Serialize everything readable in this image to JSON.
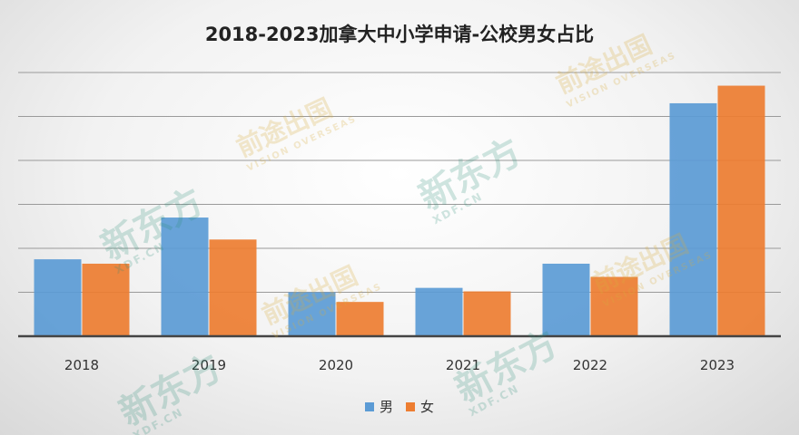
{
  "chart_data": {
    "type": "bar",
    "title": "2018-2023加拿大中小学申请-公校男女占比",
    "categories": [
      "2018",
      "2019",
      "2020",
      "2021",
      "2022",
      "2023"
    ],
    "series": [
      {
        "name": "男",
        "color": "#5b9bd5",
        "values": [
          1.75,
          2.7,
          1.0,
          1.1,
          1.65,
          5.3
        ]
      },
      {
        "name": "女",
        "color": "#ed7d31",
        "values": [
          1.65,
          2.2,
          0.78,
          1.02,
          1.35,
          5.7
        ]
      }
    ],
    "ylim": [
      0,
      6
    ],
    "ygrid_step": 1,
    "grid": true,
    "show_y_tick_labels": false,
    "legend_position": "bottom"
  },
  "watermarks": {
    "xdf_main": "新东方",
    "xdf_sub": "XDF.CN",
    "vision_main": "前途出国",
    "vision_sub": "VISION OVERSEAS"
  }
}
